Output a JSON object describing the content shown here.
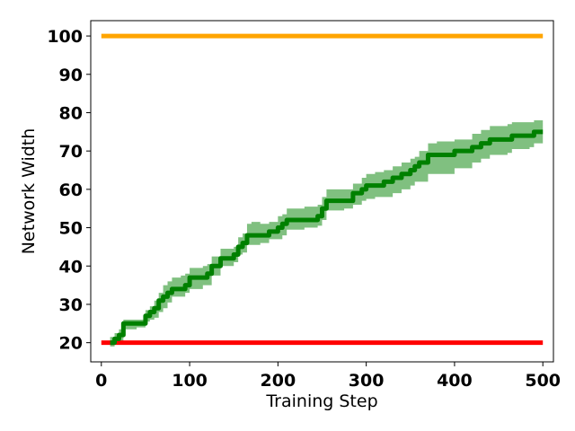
{
  "chart_data": {
    "type": "line",
    "title": "",
    "xlabel": "Training Step",
    "ylabel": "Network Width",
    "xlim": [
      -12,
      512
    ],
    "ylim": [
      15,
      104
    ],
    "x_ticks": [
      0,
      100,
      200,
      300,
      400,
      500
    ],
    "y_ticks": [
      20,
      30,
      40,
      50,
      60,
      70,
      80,
      90,
      100
    ],
    "grid": false,
    "legend": "none",
    "series": [
      {
        "color": "#ffa500",
        "x": [
          0,
          500
        ],
        "y": [
          100,
          100
        ]
      },
      {
        "color": "#ff0000",
        "x": [
          0,
          500
        ],
        "y": [
          20,
          20
        ]
      },
      {
        "color": "#008000",
        "band_color": "#80c080",
        "x": [
          10,
          15,
          20,
          25,
          40,
          50,
          55,
          60,
          65,
          70,
          75,
          80,
          90,
          95,
          100,
          115,
          120,
          125,
          135,
          150,
          155,
          160,
          165,
          170,
          180,
          190,
          200,
          205,
          210,
          230,
          245,
          250,
          255,
          275,
          285,
          295,
          300,
          310,
          320,
          330,
          340,
          350,
          355,
          360,
          370,
          380,
          400,
          420,
          430,
          440,
          460,
          465,
          485,
          490,
          500
        ],
        "y": [
          20,
          21,
          22,
          25,
          25,
          27,
          28,
          29,
          31,
          32,
          33,
          34,
          34,
          35,
          37,
          37,
          38,
          40,
          42,
          43,
          45,
          46,
          48,
          48,
          48,
          49,
          50,
          51,
          52,
          52,
          53,
          55,
          57,
          57,
          59,
          60,
          61,
          61,
          62,
          63,
          64,
          65,
          66,
          67,
          69,
          69,
          70,
          71,
          72,
          73,
          73,
          74,
          74,
          75,
          75
        ],
        "band_lower": [
          19,
          19.5,
          20.5,
          23.5,
          24,
          25.5,
          26,
          26.5,
          28,
          29,
          30.5,
          32,
          32,
          33,
          34,
          35,
          35,
          37.5,
          40,
          41,
          43,
          43.5,
          45.5,
          45.5,
          46,
          47,
          47,
          48,
          49.5,
          50,
          50.5,
          52,
          54.5,
          55,
          56,
          57,
          57.5,
          58,
          58,
          59,
          60,
          61,
          62,
          62,
          64,
          64,
          65.5,
          67,
          68,
          69,
          69.5,
          70.5,
          71,
          72,
          72
        ],
        "band_upper": [
          21.5,
          22.5,
          23.5,
          26,
          26,
          28.5,
          29.5,
          31,
          33,
          35,
          36,
          37,
          37.5,
          38,
          39.5,
          40,
          40.5,
          42.5,
          44.5,
          45,
          47.5,
          48.5,
          51,
          51.5,
          51,
          51.5,
          53,
          53.5,
          55,
          55.5,
          56,
          58,
          60,
          60,
          61.5,
          63,
          64,
          64.5,
          65,
          66,
          67,
          68,
          68.5,
          70,
          72,
          72.5,
          73,
          74.5,
          75.5,
          76.5,
          77,
          77.5,
          77.5,
          78,
          78
        ]
      }
    ]
  }
}
